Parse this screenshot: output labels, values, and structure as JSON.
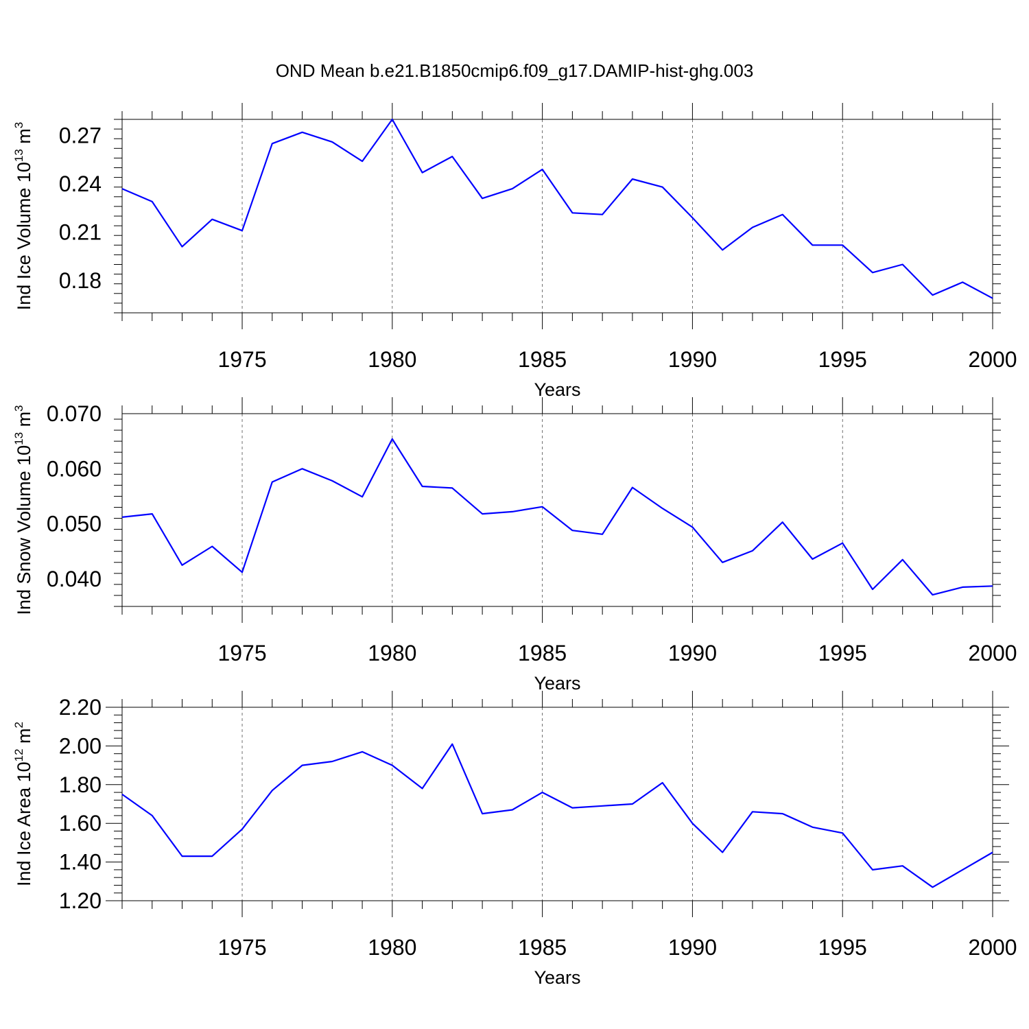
{
  "title": "OND Mean b.e21.B1850cmip6.f09_g17.DAMIP-hist-ghg.003",
  "colors": {
    "series": "#0000ff",
    "axis": "#000000",
    "background": "#ffffff"
  },
  "chart_data": [
    {
      "type": "line",
      "title": "OND Mean b.e21.B1850cmip6.f09_g17.DAMIP-hist-ghg.003",
      "xlabel": "Years",
      "ylabel": "Ind Ice Volume 10",
      "ylabel_sup": "13",
      "ylabel_unit": "m",
      "ylabel_unit_sup": "3",
      "xlim": [
        1971,
        2000
      ],
      "ylim": [
        0.16,
        0.28
      ],
      "xticks": [
        1975,
        1980,
        1985,
        1990,
        1995,
        2000
      ],
      "yticks": [
        0.18,
        0.21,
        0.24,
        0.27
      ],
      "ytick_labels": [
        "0.18",
        "0.21",
        "0.24",
        "0.27"
      ],
      "grid": "vertical dashed at major x ticks",
      "series": [
        {
          "x": [
            1971,
            1972,
            1973,
            1974,
            1975,
            1976,
            1977,
            1978,
            1979,
            1980,
            1981,
            1982,
            1983,
            1984,
            1985,
            1986,
            1987,
            1988,
            1989,
            1990,
            1991,
            1992,
            1993,
            1994,
            1995,
            1996,
            1997,
            1998,
            1999,
            2000
          ],
          "values": [
            0.237,
            0.229,
            0.201,
            0.218,
            0.211,
            0.265,
            0.272,
            0.266,
            0.254,
            0.28,
            0.247,
            0.257,
            0.231,
            0.237,
            0.249,
            0.222,
            0.221,
            0.243,
            0.238,
            0.219,
            0.199,
            0.213,
            0.221,
            0.202,
            0.202,
            0.185,
            0.19,
            0.171,
            0.179,
            0.169
          ]
        }
      ]
    },
    {
      "type": "line",
      "xlabel": "Years",
      "ylabel": "Ind Snow Volume 10",
      "ylabel_sup": "13",
      "ylabel_unit": "m",
      "ylabel_unit_sup": "3",
      "xlim": [
        1971,
        2000
      ],
      "ylim": [
        0.035,
        0.07
      ],
      "xticks": [
        1975,
        1980,
        1985,
        1990,
        1995,
        2000
      ],
      "yticks": [
        0.04,
        0.05,
        0.06,
        0.07
      ],
      "ytick_labels": [
        "0.040",
        "0.050",
        "0.060",
        "0.070"
      ],
      "grid": "vertical dashed at major x ticks",
      "series": [
        {
          "x": [
            1971,
            1972,
            1973,
            1974,
            1975,
            1976,
            1977,
            1978,
            1979,
            1980,
            1981,
            1982,
            1983,
            1984,
            1985,
            1986,
            1987,
            1988,
            1989,
            1990,
            1991,
            1992,
            1993,
            1994,
            1995,
            1996,
            1997,
            1998,
            1999,
            2000
          ],
          "values": [
            0.0512,
            0.0518,
            0.0425,
            0.0459,
            0.0412,
            0.0576,
            0.06,
            0.0578,
            0.0549,
            0.0654,
            0.0568,
            0.0565,
            0.0518,
            0.0522,
            0.0531,
            0.0488,
            0.0481,
            0.0566,
            0.0528,
            0.0494,
            0.043,
            0.0451,
            0.0503,
            0.0436,
            0.0465,
            0.0381,
            0.0435,
            0.0371,
            0.0385,
            0.0387
          ]
        }
      ]
    },
    {
      "type": "line",
      "xlabel": "Years",
      "ylabel": "Ind Ice Area 10",
      "ylabel_sup": "12",
      "ylabel_unit": "m",
      "ylabel_unit_sup": "2",
      "xlim": [
        1971,
        2000
      ],
      "ylim": [
        1.2,
        2.2
      ],
      "xticks": [
        1975,
        1980,
        1985,
        1990,
        1995,
        2000
      ],
      "yticks": [
        1.2,
        1.4,
        1.6,
        1.8,
        2.0,
        2.2
      ],
      "ytick_labels": [
        "1.20",
        "1.40",
        "1.60",
        "1.80",
        "2.00",
        "2.20"
      ],
      "grid": "vertical dashed at major x ticks",
      "series": [
        {
          "x": [
            1971,
            1972,
            1973,
            1974,
            1975,
            1976,
            1977,
            1978,
            1979,
            1980,
            1981,
            1982,
            1983,
            1984,
            1985,
            1986,
            1987,
            1988,
            1989,
            1990,
            1991,
            1992,
            1993,
            1994,
            1995,
            1996,
            1997,
            1998,
            1999,
            2000
          ],
          "values": [
            1.75,
            1.64,
            1.43,
            1.43,
            1.57,
            1.77,
            1.9,
            1.92,
            1.97,
            1.9,
            1.78,
            2.01,
            1.65,
            1.67,
            1.76,
            1.68,
            1.69,
            1.7,
            1.81,
            1.6,
            1.45,
            1.66,
            1.65,
            1.58,
            1.55,
            1.36,
            1.38,
            1.27,
            1.36,
            1.45
          ]
        }
      ]
    }
  ]
}
